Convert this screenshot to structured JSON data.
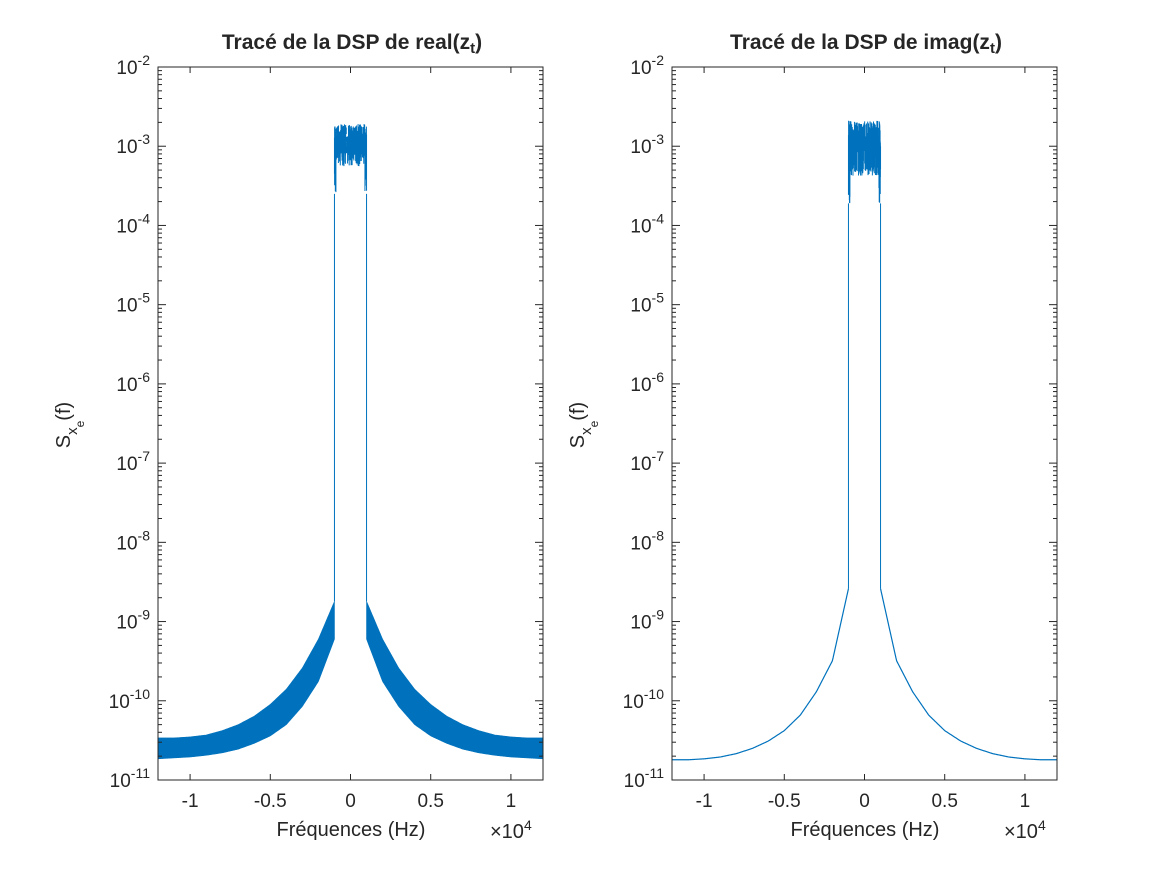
{
  "colors": {
    "line": "#0072BD",
    "axis": "#262626",
    "background": "#ffffff"
  },
  "chart_data": [
    {
      "type": "line",
      "title": {
        "main": "Tracé de la DSP de real(z",
        "sub": "t",
        "close": ")"
      },
      "xlabel": "Fréquences (Hz)",
      "ylabel": {
        "main": "S",
        "sub1": "x",
        "sub2": "e",
        "rest": "(f)"
      },
      "x_scale_label": {
        "prefix": "×10",
        "exp": "4"
      },
      "yscale": "log",
      "xlim": [
        -1.2,
        1.2
      ],
      "ylim": [
        1e-11,
        0.01
      ],
      "xticks": [
        {
          "value": -1,
          "label": "-1"
        },
        {
          "value": -0.5,
          "label": "-0.5"
        },
        {
          "value": 0,
          "label": "0"
        },
        {
          "value": 0.5,
          "label": "0.5"
        },
        {
          "value": 1,
          "label": "1"
        }
      ],
      "yticks": [
        {
          "exp": -11,
          "label": "10",
          "sup": "-11"
        },
        {
          "exp": -10,
          "label": "10",
          "sup": "-10"
        },
        {
          "exp": -9,
          "label": "10",
          "sup": "-9"
        },
        {
          "exp": -8,
          "label": "10",
          "sup": "-8"
        },
        {
          "exp": -7,
          "label": "10",
          "sup": "-7"
        },
        {
          "exp": -6,
          "label": "10",
          "sup": "-6"
        },
        {
          "exp": -5,
          "label": "10",
          "sup": "-5"
        },
        {
          "exp": -4,
          "label": "10",
          "sup": "-4"
        },
        {
          "exp": -3,
          "label": "10",
          "sup": "-3"
        },
        {
          "exp": -2,
          "label": "10",
          "sup": "-2"
        }
      ],
      "series": [
        {
          "style": "band",
          "x": [
            0.0,
            0.1,
            0.2,
            0.3,
            0.4,
            0.5,
            0.6,
            0.7,
            0.8,
            0.9,
            1.0,
            1.1,
            1.2
          ],
          "upper": [
            3.4e-09,
            1.8e-09,
            6e-10,
            2.6e-10,
            1.4e-10,
            9e-11,
            6.4e-11,
            5e-11,
            4.2e-11,
            3.7e-11,
            3.5e-11,
            3.4e-11,
            3.4e-11
          ],
          "lower": [
            3.3e-09,
            6e-10,
            1.75e-10,
            8.5e-11,
            5e-11,
            3.6e-11,
            2.9e-11,
            2.45e-11,
            2.2e-11,
            2.05e-11,
            1.95e-11,
            1.9e-11,
            1.85e-11
          ],
          "passband_edge": 0.1,
          "passband_range": [
            0.00025,
            0.0019
          ]
        }
      ]
    },
    {
      "type": "line",
      "title": {
        "main": "Tracé de la DSP de imag(z",
        "sub": "t",
        "close": ")"
      },
      "xlabel": "Fréquences (Hz)",
      "ylabel": {
        "main": "S",
        "sub1": "x",
        "sub2": "e",
        "rest": "(f)"
      },
      "x_scale_label": {
        "prefix": "×10",
        "exp": "4"
      },
      "yscale": "log",
      "xlim": [
        -1.2,
        1.2
      ],
      "ylim": [
        1e-11,
        0.01
      ],
      "xticks": [
        {
          "value": -1,
          "label": "-1"
        },
        {
          "value": -0.5,
          "label": "-0.5"
        },
        {
          "value": 0,
          "label": "0"
        },
        {
          "value": 0.5,
          "label": "0.5"
        },
        {
          "value": 1,
          "label": "1"
        }
      ],
      "yticks": [
        {
          "exp": -11,
          "label": "10",
          "sup": "-11"
        },
        {
          "exp": -10,
          "label": "10",
          "sup": "-10"
        },
        {
          "exp": -9,
          "label": "10",
          "sup": "-9"
        },
        {
          "exp": -8,
          "label": "10",
          "sup": "-8"
        },
        {
          "exp": -7,
          "label": "10",
          "sup": "-7"
        },
        {
          "exp": -6,
          "label": "10",
          "sup": "-6"
        },
        {
          "exp": -5,
          "label": "10",
          "sup": "-5"
        },
        {
          "exp": -4,
          "label": "10",
          "sup": "-4"
        },
        {
          "exp": -3,
          "label": "10",
          "sup": "-3"
        },
        {
          "exp": -2,
          "label": "10",
          "sup": "-2"
        }
      ],
      "series": [
        {
          "style": "line",
          "x": [
            0.0,
            0.1,
            0.2,
            0.3,
            0.4,
            0.5,
            0.6,
            0.7,
            0.8,
            0.9,
            1.0,
            1.1,
            1.2
          ],
          "upper": [
            3e-09,
            2.6e-09,
            3.2e-10,
            1.3e-10,
            6.6e-11,
            4.2e-11,
            3.1e-11,
            2.5e-11,
            2.15e-11,
            1.95e-11,
            1.85e-11,
            1.8e-11,
            1.8e-11
          ],
          "lower": [
            3e-09,
            2.6e-09,
            3.2e-10,
            1.3e-10,
            6.6e-11,
            4.2e-11,
            3.1e-11,
            2.5e-11,
            2.15e-11,
            1.95e-11,
            1.85e-11,
            1.8e-11,
            1.8e-11
          ],
          "passband_edge": 0.1,
          "passband_range": [
            0.00019,
            0.0021
          ]
        }
      ]
    }
  ]
}
